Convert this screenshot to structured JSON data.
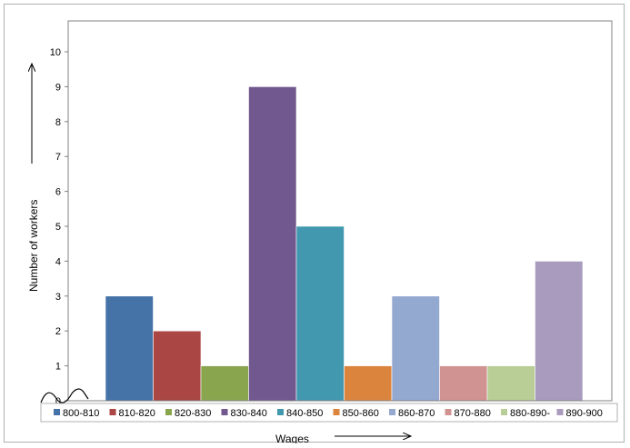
{
  "chart_data": {
    "type": "bar",
    "categories": [
      "800-810",
      "810-820",
      "820-830",
      "830-840",
      "840-850",
      "850-860",
      "860-870",
      "870-880",
      "880-890-",
      "890-900"
    ],
    "values": [
      3,
      2,
      1,
      9,
      5,
      1,
      3,
      1,
      1,
      4
    ],
    "colors": [
      "#4572A7",
      "#AA4643",
      "#89A54E",
      "#71588F",
      "#4198AF",
      "#DB843D",
      "#93A9CF",
      "#D19392",
      "#B9CD96",
      "#A99BBD"
    ],
    "xlabel": "Wages",
    "ylabel": "Number of workers",
    "ylim": [
      0,
      10
    ],
    "yticks": [
      "0",
      "1",
      "2",
      "3",
      "4",
      "5",
      "6",
      "7",
      "8",
      "9",
      "10"
    ],
    "grid": false,
    "legend": "bottom",
    "legend_entries": [
      "800-810",
      "810-820",
      "820-830",
      "830-840",
      "840-850",
      "850-860",
      "860-870",
      "870-880",
      "880-890-",
      "890-900"
    ],
    "annotations": [
      "arrow along x-axis title",
      "arrow along y-axis title",
      "axis break zigzag at origin"
    ]
  }
}
